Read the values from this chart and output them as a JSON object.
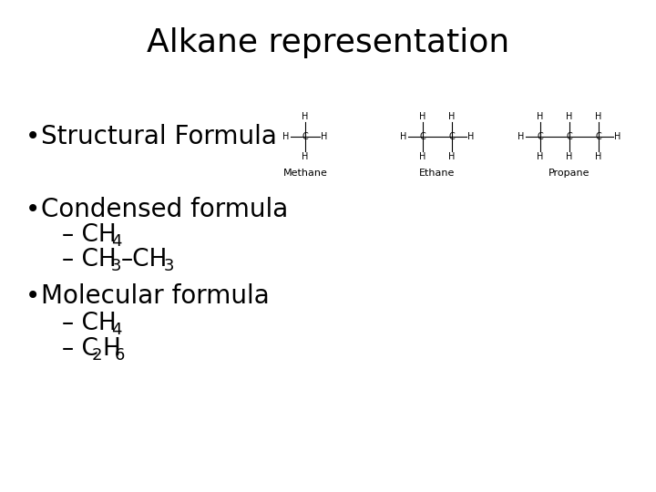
{
  "title": "Alkane representation",
  "bg_color": "#ffffff",
  "text_color": "#000000",
  "bullet1": "Structural Formula",
  "bullet2": "Condensed formula",
  "bullet3": "Molecular formula",
  "methane_label": "Methane",
  "ethane_label": "Ethane",
  "propane_label": "Propane",
  "title_fontsize": 26,
  "bullet_fontsize": 20,
  "sub_fontsize": 19,
  "sub_sub_fontsize": 13,
  "mol_fontsize": 8,
  "label_fontsize": 8
}
